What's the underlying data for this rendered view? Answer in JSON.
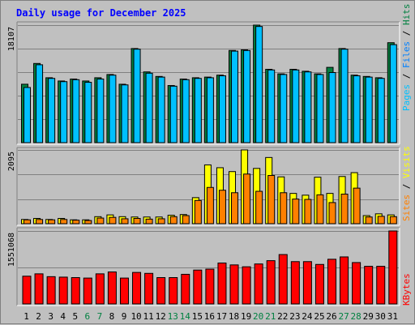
{
  "title": "Daily usage for December 2025",
  "colors": {
    "hits": "#008040",
    "files": "#0080ff",
    "pages": "#00c0ff",
    "visits": "#ffff00",
    "sites": "#ff8000",
    "kbytes": "#ff0000",
    "title": "#0000ff",
    "weekend_day": "#008040"
  },
  "chart_data": [
    {
      "type": "bar",
      "name": "hits-files",
      "categories": [
        "1",
        "2",
        "3",
        "4",
        "5",
        "6",
        "7",
        "8",
        "9",
        "10",
        "11",
        "12",
        "13",
        "14",
        "15",
        "16",
        "17",
        "18",
        "19",
        "20",
        "21",
        "22",
        "23",
        "24",
        "25",
        "26",
        "27",
        "28",
        "29",
        "30",
        "31"
      ],
      "max_label": "18107",
      "ylim": [
        0,
        18107
      ],
      "legend": [
        "Pages",
        "Files",
        "Hits"
      ],
      "series": [
        {
          "name": "Hits",
          "values": [
            9000,
            12200,
            10000,
            9500,
            9800,
            9500,
            10000,
            10500,
            9000,
            14500,
            10900,
            10200,
            8800,
            9800,
            10000,
            10100,
            10400,
            14200,
            14300,
            18107,
            11300,
            10600,
            11300,
            11000,
            10600,
            11600,
            14500,
            10400,
            10200,
            10000,
            15400
          ]
        },
        {
          "name": "Files",
          "values": [
            8500,
            12000,
            9900,
            9400,
            9700,
            9300,
            9800,
            10400,
            8900,
            14400,
            10700,
            10100,
            8700,
            9700,
            9900,
            10000,
            10300,
            14100,
            14200,
            17900,
            11200,
            10500,
            11200,
            10900,
            10500,
            10800,
            14400,
            10300,
            10100,
            9900,
            15100
          ]
        }
      ]
    },
    {
      "type": "bar",
      "name": "visits-sites",
      "categories": [
        "1",
        "2",
        "3",
        "4",
        "5",
        "6",
        "7",
        "8",
        "9",
        "10",
        "11",
        "12",
        "13",
        "14",
        "15",
        "16",
        "17",
        "18",
        "19",
        "20",
        "21",
        "22",
        "23",
        "24",
        "25",
        "26",
        "27",
        "28",
        "29",
        "30",
        "31"
      ],
      "max_label": "2095",
      "ylim": [
        0,
        2095
      ],
      "legend": [
        "Sites",
        "Visits"
      ],
      "series": [
        {
          "name": "Visits",
          "values": [
            120,
            150,
            120,
            150,
            110,
            110,
            200,
            250,
            200,
            190,
            190,
            190,
            240,
            260,
            740,
            1670,
            1590,
            1480,
            2095,
            1570,
            1880,
            1330,
            860,
            810,
            1320,
            860,
            1340,
            1450,
            230,
            280,
            250
          ]
        },
        {
          "name": "Sites",
          "values": [
            110,
            120,
            110,
            120,
            100,
            90,
            160,
            180,
            140,
            150,
            130,
            140,
            200,
            230,
            660,
            1030,
            950,
            880,
            1410,
            920,
            1370,
            880,
            700,
            690,
            820,
            600,
            840,
            1010,
            190,
            210,
            200
          ]
        }
      ]
    },
    {
      "type": "bar",
      "name": "kbytes",
      "categories": [
        "1",
        "2",
        "3",
        "4",
        "5",
        "6",
        "7",
        "8",
        "9",
        "10",
        "11",
        "12",
        "13",
        "14",
        "15",
        "16",
        "17",
        "18",
        "19",
        "20",
        "21",
        "22",
        "23",
        "24",
        "25",
        "26",
        "27",
        "28",
        "29",
        "30",
        "31"
      ],
      "max_label": "1551068",
      "ylim": [
        0,
        1551068
      ],
      "legend": [
        "KBytes"
      ],
      "series": [
        {
          "name": "KBytes",
          "values": [
            590000,
            640000,
            580000,
            570000,
            560000,
            550000,
            640000,
            680000,
            550000,
            670000,
            650000,
            560000,
            560000,
            630000,
            720000,
            740000,
            870000,
            830000,
            790000,
            850000,
            920000,
            1050000,
            900000,
            900000,
            840000,
            950000,
            1000000,
            880000,
            800000,
            800000,
            1551068
          ]
        }
      ]
    }
  ],
  "day_label_colors_weekend": [
    "6",
    "7",
    "13",
    "14",
    "20",
    "21",
    "27",
    "28"
  ]
}
